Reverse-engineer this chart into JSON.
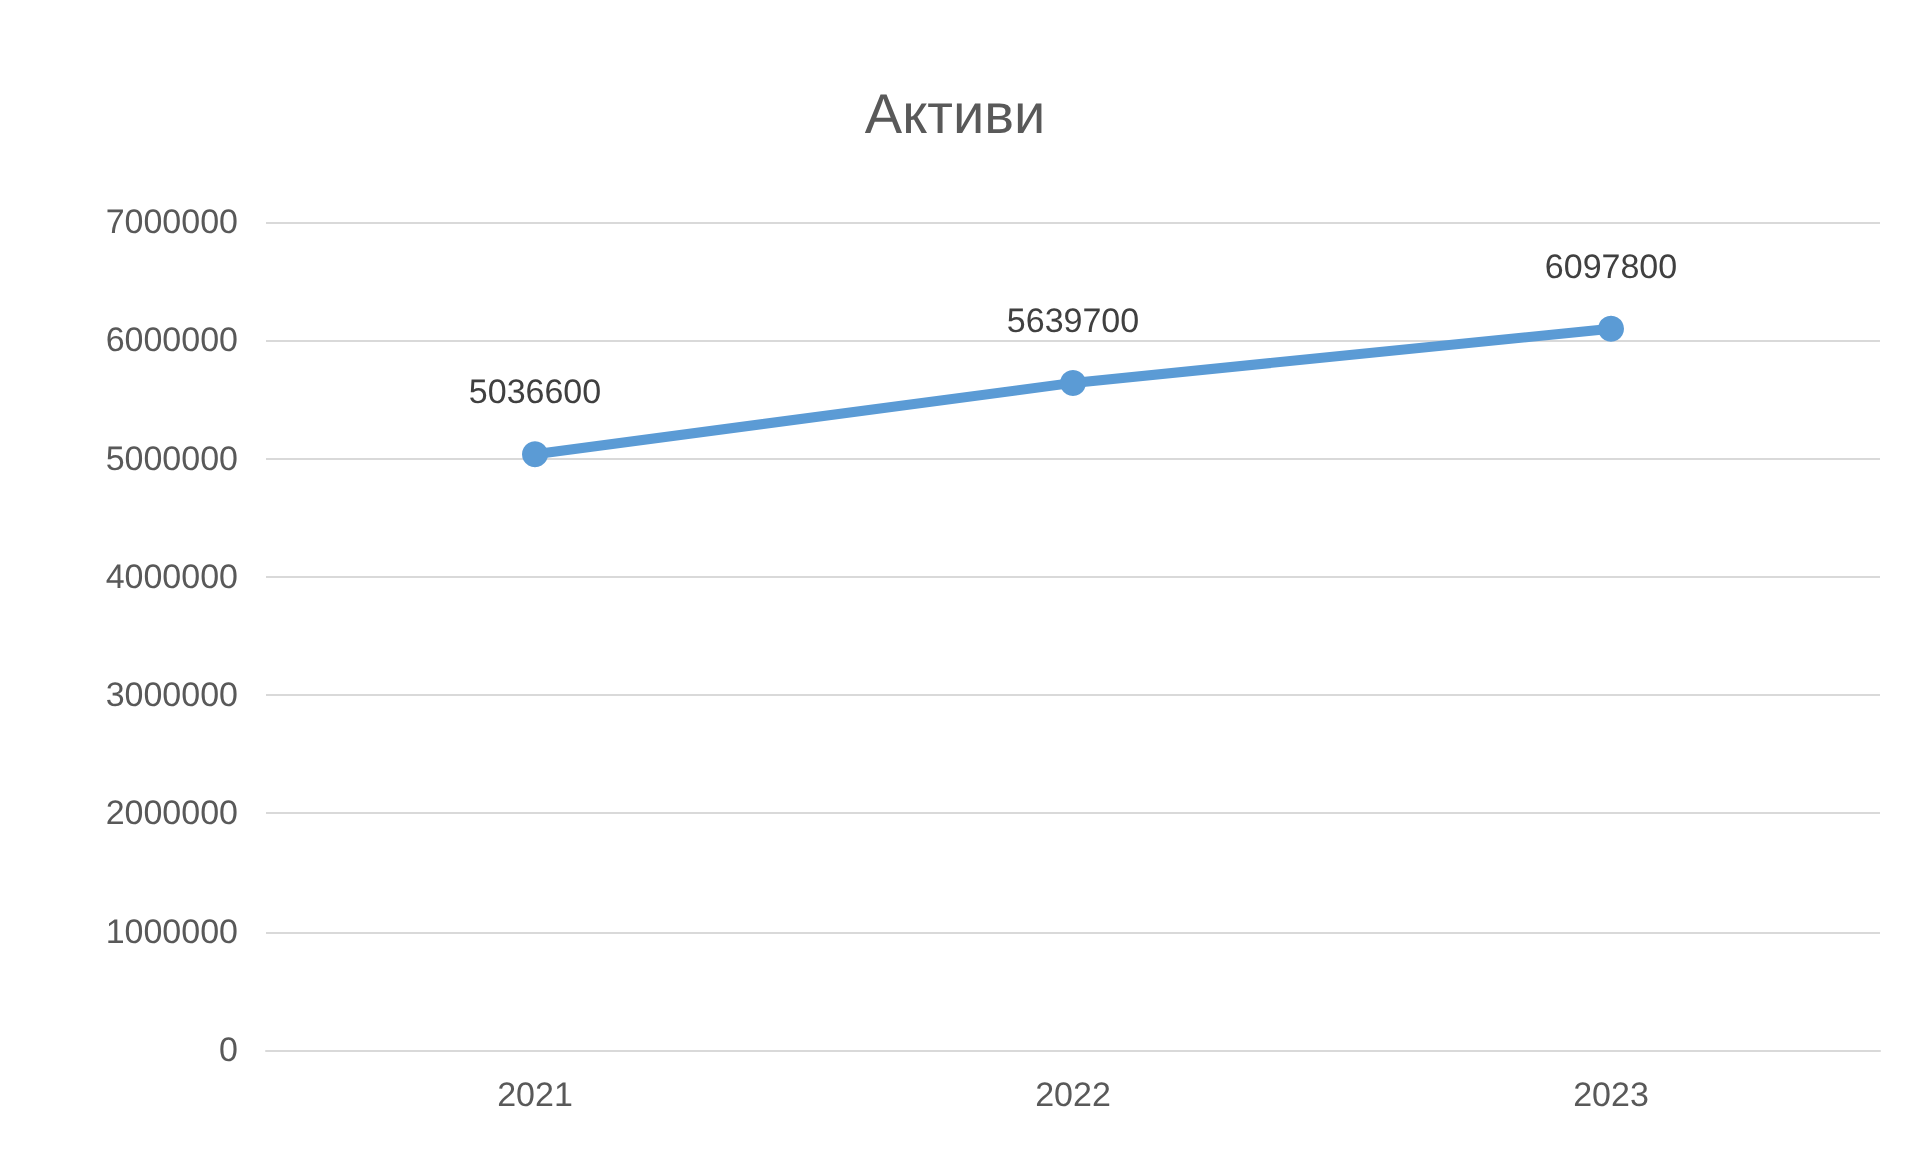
{
  "chart_data": {
    "type": "line",
    "title": "Активи",
    "categories": [
      "2021",
      "2022",
      "2023"
    ],
    "series": [
      {
        "color": "#5b9bd5",
        "values": [
          5036600,
          5639700,
          6097800
        ]
      }
    ],
    "ylim": [
      0,
      7000000
    ],
    "yticks": [
      0,
      1000000,
      2000000,
      3000000,
      4000000,
      5000000,
      6000000,
      7000000
    ],
    "grid": "y",
    "marker": "circle",
    "line_style": "solid",
    "data_labels": true
  }
}
